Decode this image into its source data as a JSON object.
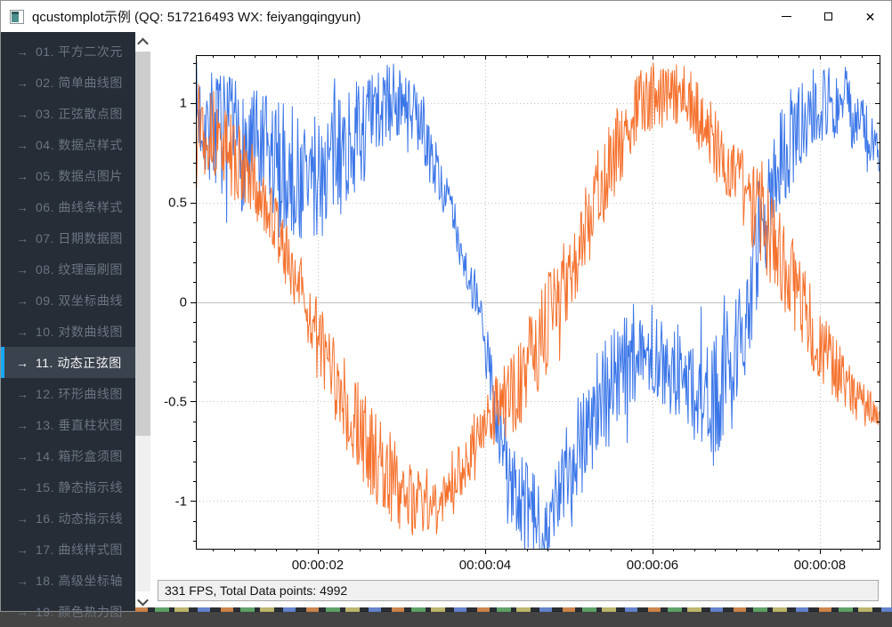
{
  "window": {
    "title": "qcustomplot示例 (QQ: 517216493 WX: feiyangqingyun)",
    "controls": {
      "minimize_icon": "minimize-icon",
      "maximize_icon": "maximize-icon",
      "close_icon": "close-icon"
    },
    "app_icon": "window-app-icon"
  },
  "sidebar": {
    "arrow": "→",
    "accent_color": "#18a8f8",
    "items": [
      {
        "label": "01. 平方二次元",
        "selected": false
      },
      {
        "label": "02. 简单曲线图",
        "selected": false
      },
      {
        "label": "03. 正弦散点图",
        "selected": false
      },
      {
        "label": "04. 数据点样式",
        "selected": false
      },
      {
        "label": "05. 数据点图片",
        "selected": false
      },
      {
        "label": "06. 曲线条样式",
        "selected": false
      },
      {
        "label": "07. 日期数据图",
        "selected": false
      },
      {
        "label": "08. 纹理画刷图",
        "selected": false
      },
      {
        "label": "09. 双坐标曲线",
        "selected": false
      },
      {
        "label": "10. 对数曲线图",
        "selected": false
      },
      {
        "label": "11. 动态正弦图",
        "selected": true
      },
      {
        "label": "12. 环形曲线图",
        "selected": false
      },
      {
        "label": "13. 垂直柱状图",
        "selected": false
      },
      {
        "label": "14. 箱形盒须图",
        "selected": false
      },
      {
        "label": "15. 静态指示线",
        "selected": false
      },
      {
        "label": "16. 动态指示线",
        "selected": false
      },
      {
        "label": "17. 曲线样式图",
        "selected": false
      },
      {
        "label": "18. 高级坐标轴",
        "selected": false
      },
      {
        "label": "19. 颜色热力图",
        "selected": false
      }
    ]
  },
  "statusbar": {
    "text": "331 FPS, Total Data points: 4992"
  },
  "chart_data": {
    "type": "line",
    "title": "",
    "xlabel": "",
    "ylabel": "",
    "total_points": 4992,
    "grid": {
      "style": "dotted",
      "color": "#c2c2c2",
      "zero_line": true,
      "zero_line_color": "#c2c2c2"
    },
    "x_axis": {
      "unit": "time hh:mm:ss",
      "range_seconds": [
        0.543,
        8.713
      ],
      "major_ticks": [
        {
          "t": 2,
          "label": "00:00:02"
        },
        {
          "t": 4,
          "label": "00:00:04"
        },
        {
          "t": 6,
          "label": "00:00:06"
        },
        {
          "t": 8,
          "label": "00:00:08"
        }
      ],
      "minor_tick_interval": 0.25
    },
    "y_axis": {
      "range": [
        -1.24,
        1.24
      ],
      "major_ticks": [
        {
          "v": 1,
          "label": "1"
        },
        {
          "v": 0.5,
          "label": "0.5"
        },
        {
          "v": 0,
          "label": "0"
        },
        {
          "v": -0.5,
          "label": "-0.5"
        },
        {
          "v": -1,
          "label": "-1"
        }
      ],
      "minor_tick_interval": 0.1
    },
    "series": [
      {
        "name": "noisy-sine-blue",
        "color": "#3b76e8",
        "description": "noisy sine trace: anchors are [time_s, center_value, noise_half_band]",
        "anchors": [
          [
            0.54,
            0.95,
            0.28
          ],
          [
            1.0,
            0.8,
            0.32
          ],
          [
            1.5,
            0.68,
            0.35
          ],
          [
            1.9,
            0.6,
            0.35
          ],
          [
            2.4,
            0.8,
            0.3
          ],
          [
            2.9,
            1.02,
            0.2
          ],
          [
            3.2,
            0.92,
            0.15
          ],
          [
            3.6,
            0.45,
            0.12
          ],
          [
            3.95,
            -0.1,
            0.12
          ],
          [
            4.3,
            -0.95,
            0.28
          ],
          [
            4.75,
            -1.15,
            0.18
          ],
          [
            5.1,
            -0.7,
            0.28
          ],
          [
            5.5,
            -0.4,
            0.32
          ],
          [
            5.9,
            -0.25,
            0.18
          ],
          [
            6.3,
            -0.35,
            0.25
          ],
          [
            6.7,
            -0.55,
            0.32
          ],
          [
            7.1,
            -0.1,
            0.28
          ],
          [
            7.5,
            0.7,
            0.28
          ],
          [
            7.9,
            1.0,
            0.22
          ],
          [
            8.3,
            1.0,
            0.2
          ],
          [
            8.71,
            0.72,
            0.15
          ]
        ]
      },
      {
        "name": "noisy-sine-orange",
        "color": "#f5712d",
        "description": "noisy sine trace: anchors are [time_s, center_value, noise_half_band]",
        "anchors": [
          [
            0.54,
            0.95,
            0.22
          ],
          [
            1.0,
            0.72,
            0.22
          ],
          [
            1.4,
            0.48,
            0.15
          ],
          [
            1.8,
            0.05,
            0.18
          ],
          [
            2.2,
            -0.4,
            0.22
          ],
          [
            2.7,
            -0.8,
            0.25
          ],
          [
            3.1,
            -1.0,
            0.2
          ],
          [
            3.5,
            -1.02,
            0.15
          ],
          [
            4.0,
            -0.6,
            0.15
          ],
          [
            4.4,
            -0.42,
            0.22
          ],
          [
            4.9,
            0.05,
            0.25
          ],
          [
            5.4,
            0.6,
            0.22
          ],
          [
            5.9,
            1.02,
            0.18
          ],
          [
            6.4,
            1.05,
            0.15
          ],
          [
            6.9,
            0.7,
            0.18
          ],
          [
            7.4,
            0.35,
            0.25
          ],
          [
            7.9,
            -0.12,
            0.22
          ],
          [
            8.4,
            -0.48,
            0.12
          ],
          [
            8.71,
            -0.58,
            0.1
          ]
        ]
      }
    ]
  }
}
